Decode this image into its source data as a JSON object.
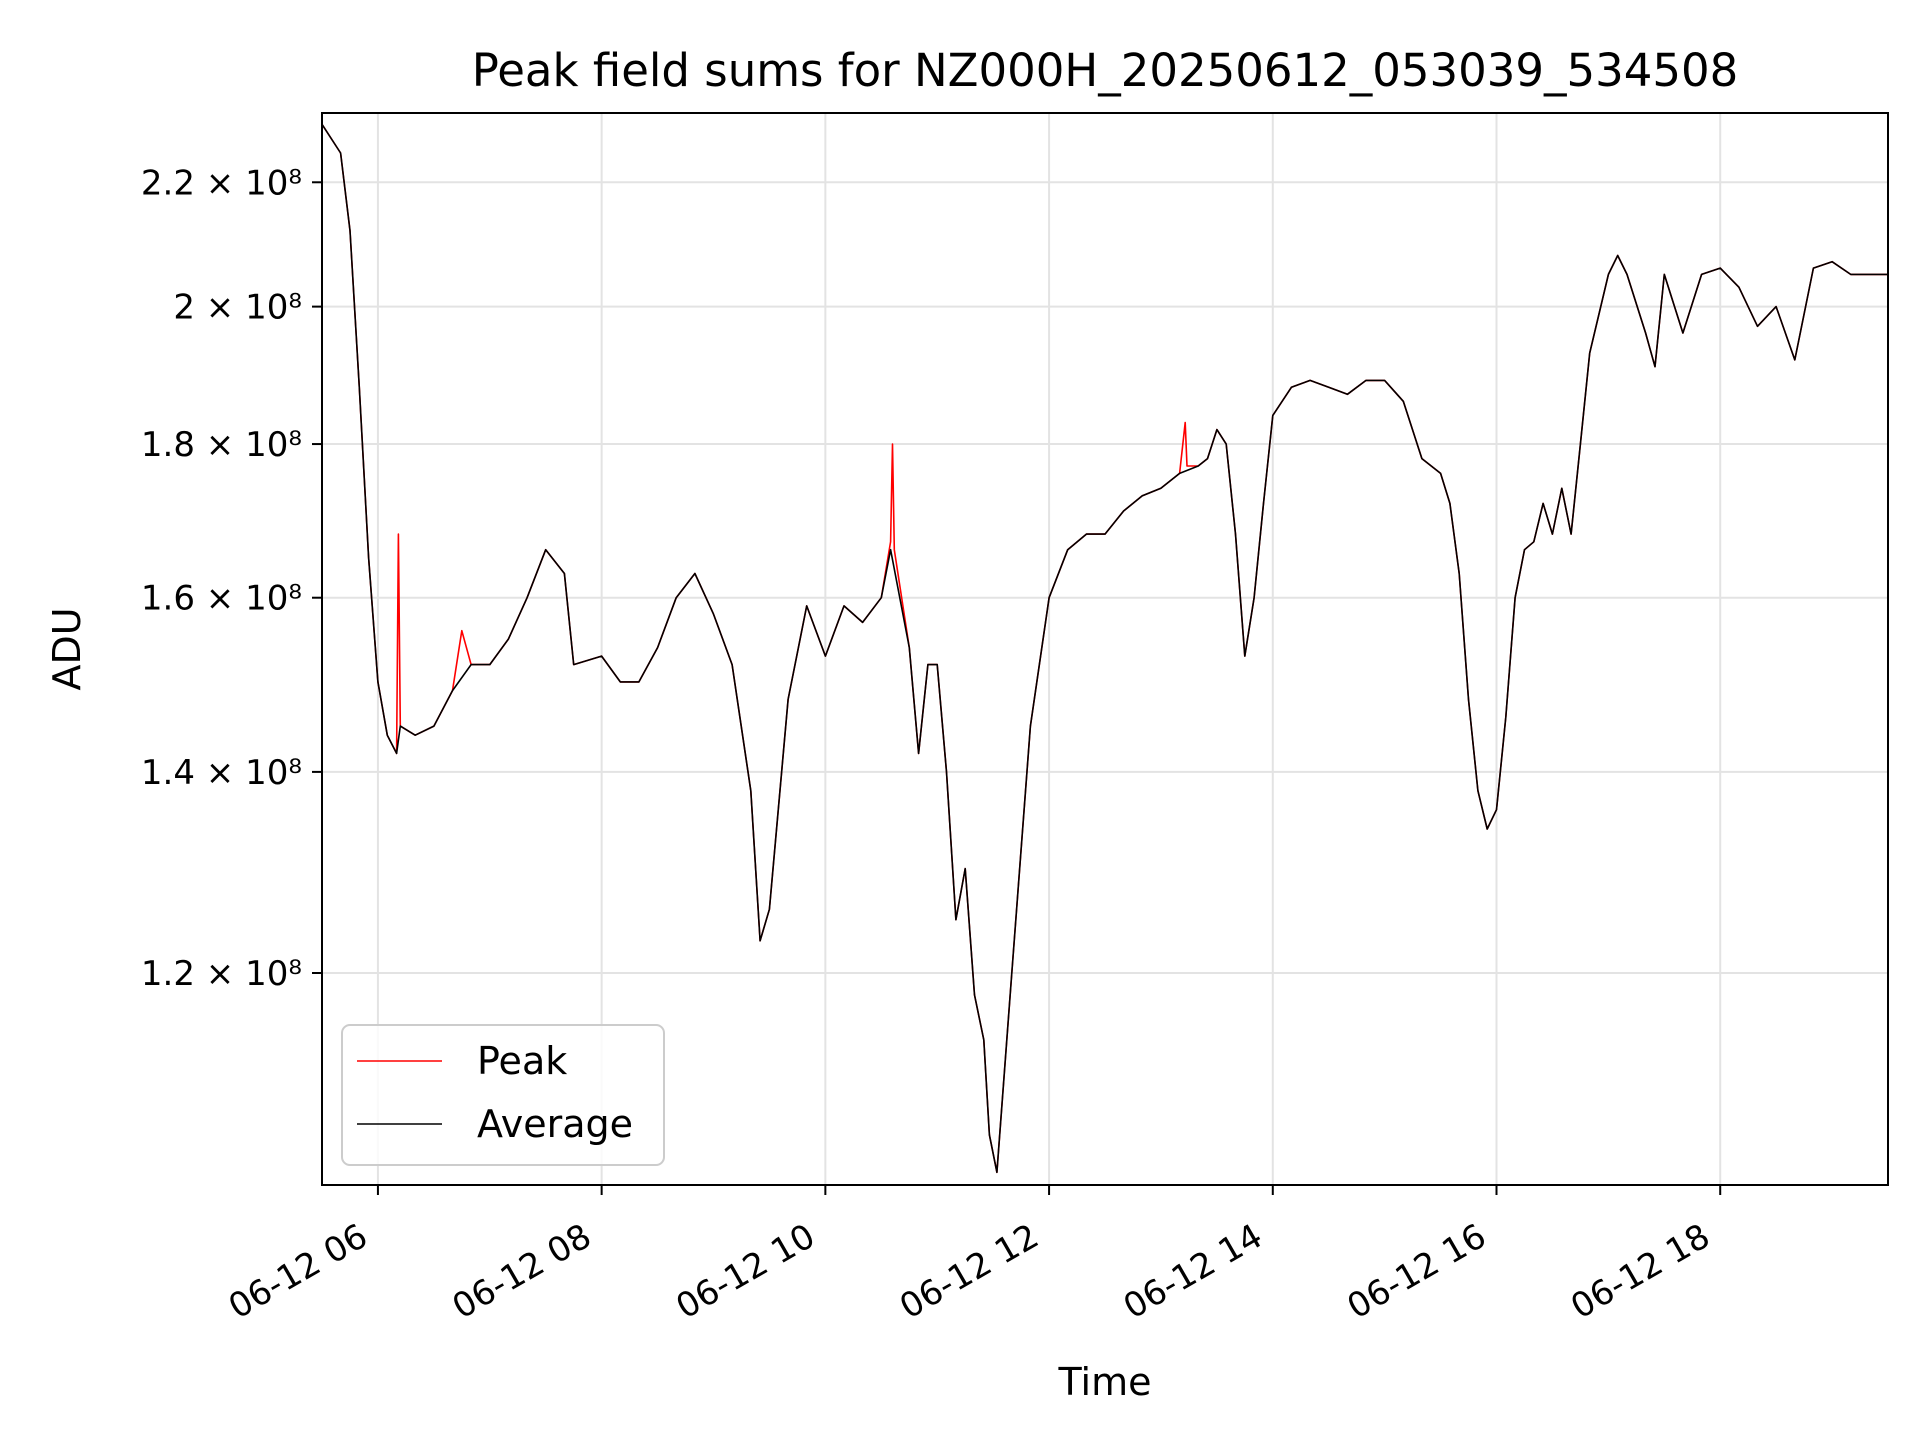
{
  "chart_data": {
    "type": "line",
    "title": "Peak field sums for NZ000H_20250612_053039_534508",
    "xlabel": "Time",
    "ylabel": "ADU",
    "y_scale": "log",
    "ylim": [
      102000000,
      232000000
    ],
    "xlim": [
      "2025-06-12T05:30",
      "2025-06-12T19:30"
    ],
    "grid": true,
    "legend_position": "lower-left",
    "x_ticks": [
      {
        "value": "2025-06-12T06:00",
        "label": "06-12 06"
      },
      {
        "value": "2025-06-12T08:00",
        "label": "06-12 08"
      },
      {
        "value": "2025-06-12T10:00",
        "label": "06-12 10"
      },
      {
        "value": "2025-06-12T12:00",
        "label": "06-12 12"
      },
      {
        "value": "2025-06-12T14:00",
        "label": "06-12 14"
      },
      {
        "value": "2025-06-12T16:00",
        "label": "06-12 16"
      },
      {
        "value": "2025-06-12T18:00",
        "label": "06-12 18"
      }
    ],
    "y_ticks": [
      {
        "value": 120000000,
        "label": "1.2 × 10⁸"
      },
      {
        "value": 140000000,
        "label": "1.4 × 10⁸"
      },
      {
        "value": 160000000,
        "label": "1.6 × 10⁸"
      },
      {
        "value": 180000000,
        "label": "1.8 × 10⁸"
      },
      {
        "value": 200000000,
        "label": "2 × 10⁸"
      },
      {
        "value": 220000000,
        "label": "2.2 × 10⁸"
      }
    ],
    "series": [
      {
        "name": "Peak",
        "color": "#ff0000",
        "points": [
          [
            "2025-06-12T05:30",
            230000000
          ],
          [
            "2025-06-12T05:40",
            225000000
          ],
          [
            "2025-06-12T05:45",
            212000000
          ],
          [
            "2025-06-12T05:50",
            188000000
          ],
          [
            "2025-06-12T05:55",
            165000000
          ],
          [
            "2025-06-12T06:00",
            150000000
          ],
          [
            "2025-06-12T06:05",
            144000000
          ],
          [
            "2025-06-12T06:10",
            142000000
          ],
          [
            "2025-06-12T06:11",
            168000000
          ],
          [
            "2025-06-12T06:12",
            145000000
          ],
          [
            "2025-06-12T06:20",
            144000000
          ],
          [
            "2025-06-12T06:30",
            145000000
          ],
          [
            "2025-06-12T06:40",
            149000000
          ],
          [
            "2025-06-12T06:45",
            156000000
          ],
          [
            "2025-06-12T06:50",
            152000000
          ],
          [
            "2025-06-12T07:00",
            152000000
          ],
          [
            "2025-06-12T07:10",
            155000000
          ],
          [
            "2025-06-12T07:20",
            160000000
          ],
          [
            "2025-06-12T07:30",
            166000000
          ],
          [
            "2025-06-12T07:40",
            163000000
          ],
          [
            "2025-06-12T07:45",
            152000000
          ],
          [
            "2025-06-12T08:00",
            153000000
          ],
          [
            "2025-06-12T08:10",
            150000000
          ],
          [
            "2025-06-12T08:20",
            150000000
          ],
          [
            "2025-06-12T08:30",
            154000000
          ],
          [
            "2025-06-12T08:40",
            160000000
          ],
          [
            "2025-06-12T08:50",
            163000000
          ],
          [
            "2025-06-12T09:00",
            158000000
          ],
          [
            "2025-06-12T09:10",
            152000000
          ],
          [
            "2025-06-12T09:20",
            138000000
          ],
          [
            "2025-06-12T09:25",
            123000000
          ],
          [
            "2025-06-12T09:30",
            126000000
          ],
          [
            "2025-06-12T09:40",
            148000000
          ],
          [
            "2025-06-12T09:50",
            159000000
          ],
          [
            "2025-06-12T10:00",
            153000000
          ],
          [
            "2025-06-12T10:10",
            159000000
          ],
          [
            "2025-06-12T10:20",
            157000000
          ],
          [
            "2025-06-12T10:30",
            160000000
          ],
          [
            "2025-06-12T10:35",
            167000000
          ],
          [
            "2025-06-12T10:36",
            180000000
          ],
          [
            "2025-06-12T10:37",
            166000000
          ],
          [
            "2025-06-12T10:45",
            154000000
          ],
          [
            "2025-06-12T10:50",
            142000000
          ],
          [
            "2025-06-12T10:55",
            152000000
          ],
          [
            "2025-06-12T11:00",
            152000000
          ],
          [
            "2025-06-12T11:05",
            140000000
          ],
          [
            "2025-06-12T11:10",
            125000000
          ],
          [
            "2025-06-12T11:15",
            130000000
          ],
          [
            "2025-06-12T11:20",
            118000000
          ],
          [
            "2025-06-12T11:25",
            114000000
          ],
          [
            "2025-06-12T11:28",
            106000000
          ],
          [
            "2025-06-12T11:32",
            103000000
          ],
          [
            "2025-06-12T11:40",
            120000000
          ],
          [
            "2025-06-12T11:50",
            145000000
          ],
          [
            "2025-06-12T12:00",
            160000000
          ],
          [
            "2025-06-12T12:10",
            166000000
          ],
          [
            "2025-06-12T12:20",
            168000000
          ],
          [
            "2025-06-12T12:30",
            168000000
          ],
          [
            "2025-06-12T12:40",
            171000000
          ],
          [
            "2025-06-12T12:50",
            173000000
          ],
          [
            "2025-06-12T13:00",
            174000000
          ],
          [
            "2025-06-12T13:10",
            176000000
          ],
          [
            "2025-06-12T13:13",
            183000000
          ],
          [
            "2025-06-12T13:14",
            177000000
          ],
          [
            "2025-06-12T13:20",
            177000000
          ],
          [
            "2025-06-12T13:25",
            178000000
          ],
          [
            "2025-06-12T13:30",
            182000000
          ],
          [
            "2025-06-12T13:35",
            180000000
          ],
          [
            "2025-06-12T13:40",
            168000000
          ],
          [
            "2025-06-12T13:45",
            153000000
          ],
          [
            "2025-06-12T13:50",
            160000000
          ],
          [
            "2025-06-12T13:55",
            172000000
          ],
          [
            "2025-06-12T14:00",
            184000000
          ],
          [
            "2025-06-12T14:10",
            188000000
          ],
          [
            "2025-06-12T14:20",
            189000000
          ],
          [
            "2025-06-12T14:30",
            188000000
          ],
          [
            "2025-06-12T14:40",
            187000000
          ],
          [
            "2025-06-12T14:50",
            189000000
          ],
          [
            "2025-06-12T15:00",
            189000000
          ],
          [
            "2025-06-12T15:10",
            186000000
          ],
          [
            "2025-06-12T15:20",
            178000000
          ],
          [
            "2025-06-12T15:30",
            176000000
          ],
          [
            "2025-06-12T15:35",
            172000000
          ],
          [
            "2025-06-12T15:40",
            163000000
          ],
          [
            "2025-06-12T15:45",
            148000000
          ],
          [
            "2025-06-12T15:50",
            138000000
          ],
          [
            "2025-06-12T15:55",
            134000000
          ],
          [
            "2025-06-12T16:00",
            136000000
          ],
          [
            "2025-06-12T16:05",
            146000000
          ],
          [
            "2025-06-12T16:10",
            160000000
          ],
          [
            "2025-06-12T16:15",
            166000000
          ],
          [
            "2025-06-12T16:20",
            167000000
          ],
          [
            "2025-06-12T16:25",
            172000000
          ],
          [
            "2025-06-12T16:30",
            168000000
          ],
          [
            "2025-06-12T16:35",
            174000000
          ],
          [
            "2025-06-12T16:40",
            168000000
          ],
          [
            "2025-06-12T16:45",
            180000000
          ],
          [
            "2025-06-12T16:50",
            193000000
          ],
          [
            "2025-06-12T17:00",
            205000000
          ],
          [
            "2025-06-12T17:05",
            208000000
          ],
          [
            "2025-06-12T17:10",
            205000000
          ],
          [
            "2025-06-12T17:20",
            196000000
          ],
          [
            "2025-06-12T17:25",
            191000000
          ],
          [
            "2025-06-12T17:30",
            205000000
          ],
          [
            "2025-06-12T17:40",
            196000000
          ],
          [
            "2025-06-12T17:50",
            205000000
          ],
          [
            "2025-06-12T18:00",
            206000000
          ],
          [
            "2025-06-12T18:10",
            203000000
          ],
          [
            "2025-06-12T18:20",
            197000000
          ],
          [
            "2025-06-12T18:30",
            200000000
          ],
          [
            "2025-06-12T18:40",
            192000000
          ],
          [
            "2025-06-12T18:50",
            206000000
          ],
          [
            "2025-06-12T19:00",
            207000000
          ],
          [
            "2025-06-12T19:10",
            205000000
          ],
          [
            "2025-06-12T19:20",
            205000000
          ],
          [
            "2025-06-12T19:30",
            205000000
          ]
        ]
      },
      {
        "name": "Average",
        "color": "#000000",
        "points": [
          [
            "2025-06-12T05:30",
            230000000
          ],
          [
            "2025-06-12T05:40",
            225000000
          ],
          [
            "2025-06-12T05:45",
            212000000
          ],
          [
            "2025-06-12T05:50",
            188000000
          ],
          [
            "2025-06-12T05:55",
            165000000
          ],
          [
            "2025-06-12T06:00",
            150000000
          ],
          [
            "2025-06-12T06:05",
            144000000
          ],
          [
            "2025-06-12T06:10",
            142000000
          ],
          [
            "2025-06-12T06:12",
            145000000
          ],
          [
            "2025-06-12T06:20",
            144000000
          ],
          [
            "2025-06-12T06:30",
            145000000
          ],
          [
            "2025-06-12T06:40",
            149000000
          ],
          [
            "2025-06-12T06:50",
            152000000
          ],
          [
            "2025-06-12T07:00",
            152000000
          ],
          [
            "2025-06-12T07:10",
            155000000
          ],
          [
            "2025-06-12T07:20",
            160000000
          ],
          [
            "2025-06-12T07:30",
            166000000
          ],
          [
            "2025-06-12T07:40",
            163000000
          ],
          [
            "2025-06-12T07:45",
            152000000
          ],
          [
            "2025-06-12T08:00",
            153000000
          ],
          [
            "2025-06-12T08:10",
            150000000
          ],
          [
            "2025-06-12T08:20",
            150000000
          ],
          [
            "2025-06-12T08:30",
            154000000
          ],
          [
            "2025-06-12T08:40",
            160000000
          ],
          [
            "2025-06-12T08:50",
            163000000
          ],
          [
            "2025-06-12T09:00",
            158000000
          ],
          [
            "2025-06-12T09:10",
            152000000
          ],
          [
            "2025-06-12T09:20",
            138000000
          ],
          [
            "2025-06-12T09:25",
            123000000
          ],
          [
            "2025-06-12T09:30",
            126000000
          ],
          [
            "2025-06-12T09:40",
            148000000
          ],
          [
            "2025-06-12T09:50",
            159000000
          ],
          [
            "2025-06-12T10:00",
            153000000
          ],
          [
            "2025-06-12T10:10",
            159000000
          ],
          [
            "2025-06-12T10:20",
            157000000
          ],
          [
            "2025-06-12T10:30",
            160000000
          ],
          [
            "2025-06-12T10:35",
            166000000
          ],
          [
            "2025-06-12T10:45",
            154000000
          ],
          [
            "2025-06-12T10:50",
            142000000
          ],
          [
            "2025-06-12T10:55",
            152000000
          ],
          [
            "2025-06-12T11:00",
            152000000
          ],
          [
            "2025-06-12T11:05",
            140000000
          ],
          [
            "2025-06-12T11:10",
            125000000
          ],
          [
            "2025-06-12T11:15",
            130000000
          ],
          [
            "2025-06-12T11:20",
            118000000
          ],
          [
            "2025-06-12T11:25",
            114000000
          ],
          [
            "2025-06-12T11:28",
            106000000
          ],
          [
            "2025-06-12T11:32",
            103000000
          ],
          [
            "2025-06-12T11:40",
            120000000
          ],
          [
            "2025-06-12T11:50",
            145000000
          ],
          [
            "2025-06-12T12:00",
            160000000
          ],
          [
            "2025-06-12T12:10",
            166000000
          ],
          [
            "2025-06-12T12:20",
            168000000
          ],
          [
            "2025-06-12T12:30",
            168000000
          ],
          [
            "2025-06-12T12:40",
            171000000
          ],
          [
            "2025-06-12T12:50",
            173000000
          ],
          [
            "2025-06-12T13:00",
            174000000
          ],
          [
            "2025-06-12T13:10",
            176000000
          ],
          [
            "2025-06-12T13:20",
            177000000
          ],
          [
            "2025-06-12T13:25",
            178000000
          ],
          [
            "2025-06-12T13:30",
            182000000
          ],
          [
            "2025-06-12T13:35",
            180000000
          ],
          [
            "2025-06-12T13:40",
            168000000
          ],
          [
            "2025-06-12T13:45",
            153000000
          ],
          [
            "2025-06-12T13:50",
            160000000
          ],
          [
            "2025-06-12T13:55",
            172000000
          ],
          [
            "2025-06-12T14:00",
            184000000
          ],
          [
            "2025-06-12T14:10",
            188000000
          ],
          [
            "2025-06-12T14:20",
            189000000
          ],
          [
            "2025-06-12T14:30",
            188000000
          ],
          [
            "2025-06-12T14:40",
            187000000
          ],
          [
            "2025-06-12T14:50",
            189000000
          ],
          [
            "2025-06-12T15:00",
            189000000
          ],
          [
            "2025-06-12T15:10",
            186000000
          ],
          [
            "2025-06-12T15:20",
            178000000
          ],
          [
            "2025-06-12T15:30",
            176000000
          ],
          [
            "2025-06-12T15:35",
            172000000
          ],
          [
            "2025-06-12T15:40",
            163000000
          ],
          [
            "2025-06-12T15:45",
            148000000
          ],
          [
            "2025-06-12T15:50",
            138000000
          ],
          [
            "2025-06-12T15:55",
            134000000
          ],
          [
            "2025-06-12T16:00",
            136000000
          ],
          [
            "2025-06-12T16:05",
            146000000
          ],
          [
            "2025-06-12T16:10",
            160000000
          ],
          [
            "2025-06-12T16:15",
            166000000
          ],
          [
            "2025-06-12T16:20",
            167000000
          ],
          [
            "2025-06-12T16:25",
            172000000
          ],
          [
            "2025-06-12T16:30",
            168000000
          ],
          [
            "2025-06-12T16:35",
            174000000
          ],
          [
            "2025-06-12T16:40",
            168000000
          ],
          [
            "2025-06-12T16:45",
            180000000
          ],
          [
            "2025-06-12T16:50",
            193000000
          ],
          [
            "2025-06-12T17:00",
            205000000
          ],
          [
            "2025-06-12T17:05",
            208000000
          ],
          [
            "2025-06-12T17:10",
            205000000
          ],
          [
            "2025-06-12T17:20",
            196000000
          ],
          [
            "2025-06-12T17:25",
            191000000
          ],
          [
            "2025-06-12T17:30",
            205000000
          ],
          [
            "2025-06-12T17:40",
            196000000
          ],
          [
            "2025-06-12T17:50",
            205000000
          ],
          [
            "2025-06-12T18:00",
            206000000
          ],
          [
            "2025-06-12T18:10",
            203000000
          ],
          [
            "2025-06-12T18:20",
            197000000
          ],
          [
            "2025-06-12T18:30",
            200000000
          ],
          [
            "2025-06-12T18:40",
            192000000
          ],
          [
            "2025-06-12T18:50",
            206000000
          ],
          [
            "2025-06-12T19:00",
            207000000
          ],
          [
            "2025-06-12T19:10",
            205000000
          ],
          [
            "2025-06-12T19:20",
            205000000
          ],
          [
            "2025-06-12T19:30",
            205000000
          ]
        ]
      }
    ]
  }
}
